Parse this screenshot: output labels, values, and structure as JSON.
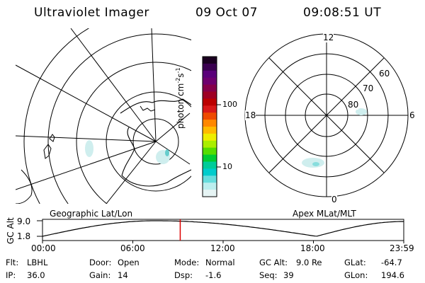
{
  "header": {
    "title": "Ultraviolet Imager",
    "date": "09 Oct 07",
    "time": "09:08:51 UT"
  },
  "left_map": {
    "caption": "Geographic Lat/Lon"
  },
  "right_map": {
    "caption": "Apex MLat/MLT",
    "mlt_labels": {
      "top": "12",
      "left": "18",
      "right": "6",
      "bottom": "0"
    },
    "lat_labels": [
      "60",
      "70",
      "80"
    ]
  },
  "colorbar": {
    "tick_labels": [
      "100",
      "10"
    ],
    "colors": [
      "#1a0020",
      "#3a0050",
      "#5a007a",
      "#6e006e",
      "#85004a",
      "#9e0024",
      "#bb0000",
      "#d81818",
      "#ee4a00",
      "#ff8800",
      "#ffbb00",
      "#eeee00",
      "#aaee00",
      "#55dd00",
      "#00cc33",
      "#00cc99",
      "#00cccc",
      "#66dddd",
      "#bbeeee",
      "#e6f4f4"
    ]
  },
  "timeline": {
    "ylabel": "GC Alt",
    "y_ticks": [
      "9.0",
      "1.8"
    ],
    "x_ticks": [
      "00:00",
      "06:00",
      "12:00",
      "18:00",
      "23:59"
    ],
    "marker_time_hours": 9.15
  },
  "status": {
    "flt_label": "Flt:",
    "flt_value": "LBHL",
    "ip_label": "IP:",
    "ip_value": "36.0",
    "door_label": "Door:",
    "door_value": "Open",
    "gain_label": "Gain:",
    "gain_value": "14",
    "mode_label": "Mode:",
    "mode_value": "Normal",
    "dsp_label": "Dsp:",
    "dsp_value": "-1.6",
    "gcalt_label": "GC Alt:",
    "gcalt_value": "9.0 Re",
    "seq_label": "Seq:",
    "seq_value": "39",
    "glat_label": "GLat:",
    "glat_value": "-64.7",
    "glon_label": "GLon:",
    "glon_value": "194.6"
  }
}
